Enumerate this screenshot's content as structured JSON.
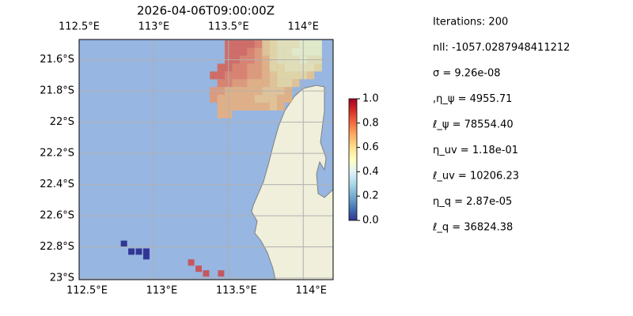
{
  "title": "2026-04-06T09:00:00Z",
  "map": {
    "xlim": [
      112.5,
      114.2
    ],
    "ylim": [
      -23.01,
      -21.47
    ],
    "lon_ticks": [
      {
        "value": 112.5,
        "label": "112.5°E"
      },
      {
        "value": 113,
        "label": "113°E"
      },
      {
        "value": 113.5,
        "label": "113.5°E"
      },
      {
        "value": 114,
        "label": "114°E"
      }
    ],
    "lat_ticks": [
      {
        "value": -21.6,
        "label": "21.6°S"
      },
      {
        "value": -21.8,
        "label": "21.8°S"
      },
      {
        "value": -22,
        "label": "22°S"
      },
      {
        "value": -22.2,
        "label": "22.2°S"
      },
      {
        "value": -22.4,
        "label": "22.4°S"
      },
      {
        "value": -22.6,
        "label": "22.6°S"
      },
      {
        "value": -22.8,
        "label": "22.8°S"
      },
      {
        "value": -23,
        "label": "23°S"
      }
    ],
    "ocean_color": "#97b6e1",
    "land_color": "#efefdb",
    "grid": true
  },
  "heatmap": {
    "lons": [
      113.4,
      113.45,
      113.5,
      113.55,
      113.6,
      113.65,
      113.7,
      113.75,
      113.8,
      113.85,
      113.9,
      113.95,
      114.0,
      114.05,
      114.1,
      114.15
    ],
    "lats": [
      -21.5,
      -21.55,
      -21.6,
      -21.65,
      -21.7,
      -21.75,
      -21.8,
      -21.85,
      -21.9,
      -21.95
    ],
    "values": [
      [
        null,
        null,
        0.85,
        0.85,
        0.85,
        0.85,
        0.8,
        0.65,
        0.6,
        0.55,
        0.55,
        0.55,
        0.5,
        0.5,
        0.5,
        null
      ],
      [
        null,
        null,
        0.85,
        0.85,
        0.85,
        0.8,
        0.75,
        0.65,
        0.6,
        0.55,
        0.55,
        0.5,
        0.5,
        0.5,
        0.5,
        null
      ],
      [
        null,
        null,
        0.85,
        0.85,
        0.8,
        0.8,
        0.75,
        0.7,
        0.6,
        0.55,
        0.55,
        0.55,
        0.5,
        0.55,
        0.55,
        null
      ],
      [
        null,
        0.85,
        0.85,
        0.8,
        0.8,
        0.75,
        0.75,
        0.7,
        0.6,
        0.6,
        0.55,
        0.55,
        0.55,
        0.55,
        0.6,
        null
      ],
      [
        0.85,
        0.85,
        0.8,
        0.8,
        0.8,
        0.75,
        0.75,
        0.7,
        0.65,
        0.6,
        0.6,
        0.6,
        0.6,
        0.65,
        null,
        null
      ],
      [
        null,
        0.8,
        0.8,
        0.75,
        0.75,
        0.7,
        0.7,
        0.7,
        0.65,
        0.6,
        0.6,
        0.65,
        null,
        null,
        null,
        null
      ],
      [
        0.75,
        0.75,
        0.7,
        0.7,
        0.7,
        0.7,
        0.7,
        0.65,
        0.65,
        0.65,
        0.7,
        null,
        null,
        null,
        null,
        null
      ],
      [
        0.75,
        0.7,
        0.7,
        0.7,
        0.7,
        0.7,
        0.65,
        0.65,
        0.65,
        0.7,
        0.7,
        null,
        null,
        null,
        null,
        null
      ],
      [
        null,
        0.7,
        0.7,
        0.7,
        0.7,
        0.7,
        0.7,
        0.7,
        0.65,
        0.7,
        null,
        null,
        null,
        null,
        null,
        null
      ],
      [
        null,
        0.7,
        0.7,
        null,
        null,
        null,
        null,
        null,
        null,
        null,
        null,
        null,
        null,
        null,
        null,
        null
      ]
    ]
  },
  "extra_cells": [
    {
      "lon": 112.8,
      "lat": -22.78,
      "value": 0.0
    },
    {
      "lon": 112.85,
      "lat": -22.83,
      "value": 0.0
    },
    {
      "lon": 112.9,
      "lat": -22.83,
      "value": 0.0
    },
    {
      "lon": 112.95,
      "lat": -22.83,
      "value": 0.0
    },
    {
      "lon": 112.95,
      "lat": -22.86,
      "value": 0.0
    },
    {
      "lon": 113.25,
      "lat": -22.9,
      "value": 0.9
    },
    {
      "lon": 113.3,
      "lat": -22.94,
      "value": 0.9
    },
    {
      "lon": 113.35,
      "lat": -22.97,
      "value": 0.9
    },
    {
      "lon": 113.45,
      "lat": -22.97,
      "value": 0.9
    }
  ],
  "colorbar": {
    "lim": [
      0,
      1
    ],
    "ticks": [
      {
        "value": 0,
        "label": "0.0"
      },
      0.2,
      0.4,
      0.6,
      0.8,
      {
        "value": 1,
        "label": "1.0"
      }
    ],
    "colors": [
      "#313695",
      "#4575b4",
      "#74add1",
      "#abd9e9",
      "#e0f3f8",
      "#ffffbf",
      "#fee090",
      "#fdae61",
      "#f46d43",
      "#d73027",
      "#a50026"
    ]
  },
  "info": [
    "Iterations: 200",
    "nll: -1057.0287948411212",
    "σ = 9.26e-08",
    ",η_ψ = 4955.71",
    "ℓ_ψ = 78554.40",
    "η_uv = 1.18e-01",
    "ℓ_uv = 10206.23",
    "η_q = 2.87e-05",
    "ℓ_q = 36824.38"
  ]
}
